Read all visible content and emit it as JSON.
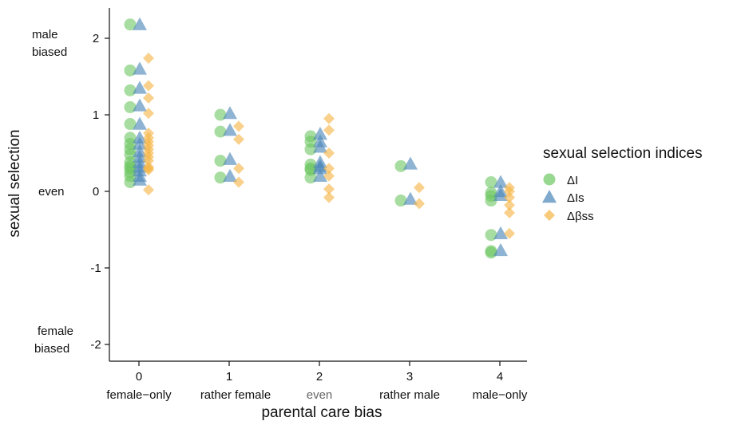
{
  "chart_data": {
    "type": "scatter",
    "xlabel": "parental care bias",
    "ylabel": "sexual selection",
    "x_ticks": [
      "0",
      "1",
      "2",
      "3",
      "4"
    ],
    "x_categories": [
      "female−only",
      "rather female",
      "even",
      "rather male",
      "male−only"
    ],
    "y_ticks": [
      "2",
      "1",
      "0",
      "-1",
      "-2"
    ],
    "ylim": [
      -2.2,
      2.3
    ],
    "xlim": [
      -0.45,
      4.3
    ],
    "y_annotations": {
      "top_line1": "male",
      "top_line2": "biased",
      "middle": "even",
      "bottom_line1": "female",
      "bottom_line2": "biased"
    },
    "legend": {
      "title": "sexual selection indices",
      "placement": "right",
      "entries": [
        {
          "label": "ΔI",
          "shape": "circle",
          "color": "#6cc761"
        },
        {
          "label": "ΔIs",
          "shape": "triangle",
          "color": "#4a86b8"
        },
        {
          "label": "Δβss",
          "shape": "diamond",
          "color": "#f5b445"
        }
      ]
    },
    "series": [
      {
        "name": "ΔI",
        "shape": "circle",
        "color": "#6cc761",
        "points": [
          [
            0,
            2.18
          ],
          [
            0,
            1.58
          ],
          [
            0,
            1.32
          ],
          [
            0,
            1.1
          ],
          [
            0,
            0.88
          ],
          [
            0,
            0.7
          ],
          [
            0,
            0.62
          ],
          [
            0,
            0.55
          ],
          [
            0,
            0.48
          ],
          [
            0,
            0.38
          ],
          [
            0,
            0.33
          ],
          [
            0,
            0.3
          ],
          [
            0,
            0.25
          ],
          [
            0,
            0.2
          ],
          [
            0,
            0.12
          ],
          [
            1,
            1.0
          ],
          [
            1,
            0.78
          ],
          [
            1,
            0.4
          ],
          [
            1,
            0.18
          ],
          [
            2,
            0.72
          ],
          [
            2,
            0.65
          ],
          [
            2,
            0.55
          ],
          [
            2,
            0.35
          ],
          [
            2,
            0.3
          ],
          [
            2,
            0.28
          ],
          [
            2,
            0.18
          ],
          [
            3,
            0.33
          ],
          [
            3,
            -0.12
          ],
          [
            4,
            0.12
          ],
          [
            4,
            -0.02
          ],
          [
            4,
            -0.06
          ],
          [
            4,
            -0.12
          ],
          [
            4,
            -0.57
          ],
          [
            4,
            -0.78
          ],
          [
            4,
            -0.8
          ]
        ]
      },
      {
        "name": "ΔIs",
        "shape": "triangle",
        "color": "#4a86b8",
        "points": [
          [
            0,
            2.18
          ],
          [
            0,
            1.6
          ],
          [
            0,
            1.35
          ],
          [
            0,
            1.12
          ],
          [
            0,
            0.88
          ],
          [
            0,
            0.7
          ],
          [
            0,
            0.62
          ],
          [
            0,
            0.52
          ],
          [
            0,
            0.45
          ],
          [
            0,
            0.38
          ],
          [
            0,
            0.32
          ],
          [
            0,
            0.27
          ],
          [
            0,
            0.2
          ],
          [
            0,
            0.15
          ],
          [
            1,
            1.02
          ],
          [
            1,
            0.8
          ],
          [
            1,
            0.42
          ],
          [
            1,
            0.2
          ],
          [
            2,
            0.75
          ],
          [
            2,
            0.65
          ],
          [
            2,
            0.58
          ],
          [
            2,
            0.38
          ],
          [
            2,
            0.33
          ],
          [
            2,
            0.3
          ],
          [
            2,
            0.2
          ],
          [
            3,
            0.36
          ],
          [
            3,
            -0.1
          ],
          [
            4,
            0.12
          ],
          [
            4,
            0.0
          ],
          [
            4,
            -0.05
          ],
          [
            4,
            -0.55
          ],
          [
            4,
            -0.77
          ]
        ]
      },
      {
        "name": "Δβss",
        "shape": "diamond",
        "color": "#f5b445",
        "points": [
          [
            0,
            1.74
          ],
          [
            0,
            1.38
          ],
          [
            0,
            1.22
          ],
          [
            0,
            1.02
          ],
          [
            0,
            0.76
          ],
          [
            0,
            0.7
          ],
          [
            0,
            0.65
          ],
          [
            0,
            0.6
          ],
          [
            0,
            0.55
          ],
          [
            0,
            0.5
          ],
          [
            0,
            0.45
          ],
          [
            0,
            0.4
          ],
          [
            0,
            0.32
          ],
          [
            0,
            0.3
          ],
          [
            0,
            0.28
          ],
          [
            0,
            0.02
          ],
          [
            1,
            0.85
          ],
          [
            1,
            0.68
          ],
          [
            1,
            0.3
          ],
          [
            1,
            0.12
          ],
          [
            2,
            0.95
          ],
          [
            2,
            0.8
          ],
          [
            2,
            0.5
          ],
          [
            2,
            0.3
          ],
          [
            2,
            0.2
          ],
          [
            2,
            0.03
          ],
          [
            2,
            -0.08
          ],
          [
            3,
            0.05
          ],
          [
            3,
            -0.16
          ],
          [
            4,
            0.05
          ],
          [
            4,
            0.0
          ],
          [
            4,
            -0.08
          ],
          [
            4,
            -0.18
          ],
          [
            4,
            -0.28
          ],
          [
            4,
            -0.55
          ]
        ]
      }
    ]
  }
}
